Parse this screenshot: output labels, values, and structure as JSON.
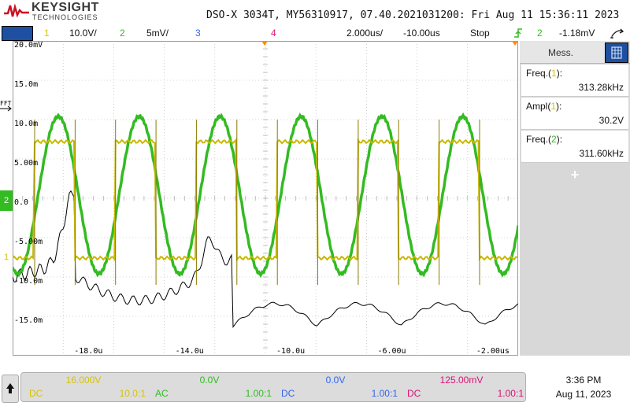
{
  "header": {
    "brand": "KEYSIGHT",
    "brand_sub": "TECHNOLOGIES",
    "title": "DSO-X 3034T, MY56310917, 07.40.2021031200: Fri Aug 11 15:36:11 2023"
  },
  "channel_bar": {
    "ch1_num": "1",
    "ch1_scale": "10.0V/",
    "ch2_num": "2",
    "ch2_scale": "5mV/",
    "ch3_num": "3",
    "ch4_num": "4",
    "timebase": "2.000us/",
    "delay": "-10.00us",
    "run_state": "Stop",
    "trigger_source": "2",
    "trigger_level": "-1.18mV"
  },
  "markers": {
    "fft": "FFT",
    "ch2_marker": "2",
    "ch1_marker": "1"
  },
  "grid_labels": {
    "y": [
      "20.0mV",
      "15.0m",
      "10.0m",
      "5.00m",
      "0.0",
      "-5.00m",
      "-10.0m",
      "-15.0m"
    ],
    "x": [
      "-18.0u",
      "-14.0u",
      "-10.0u",
      "-6.00u",
      "-2.00us"
    ]
  },
  "sidebar": {
    "tab_label": "Mess.",
    "measurements": [
      {
        "label": "Freq.",
        "source": "1",
        "value": "313.28kHz",
        "color": "#d7c400"
      },
      {
        "label": "Ampl",
        "source": "1",
        "value": "30.2V",
        "color": "#d7c400"
      },
      {
        "label": "Freq.",
        "source": "2",
        "value": "311.60kHz",
        "color": "#33bb22"
      }
    ],
    "add_symbol": "+"
  },
  "channels_panel": {
    "ch1": {
      "value": "16.000V",
      "coupling": "DC",
      "probe": "10.0:1",
      "color": "#d7c400"
    },
    "ch2": {
      "value": "0.0V",
      "coupling": "AC",
      "probe": "1.00:1",
      "color": "#33bb22"
    },
    "ch3": {
      "value": "0.0V",
      "coupling": "DC",
      "probe": "1.00:1",
      "color": "#3366ee"
    },
    "ch4": {
      "value": "125.00mV",
      "coupling": "DC",
      "probe": "1.00:1",
      "color": "#dd1177"
    }
  },
  "clock": {
    "time": "3:36 PM",
    "date": "Aug 11, 2023"
  },
  "colors": {
    "ch1": "#d7c400",
    "ch2": "#33bb22",
    "ch3": "#3366ee",
    "ch4": "#dd1177",
    "fft": "#000000",
    "accent": "#1f4fa0",
    "trigger": "#33bb22"
  }
}
